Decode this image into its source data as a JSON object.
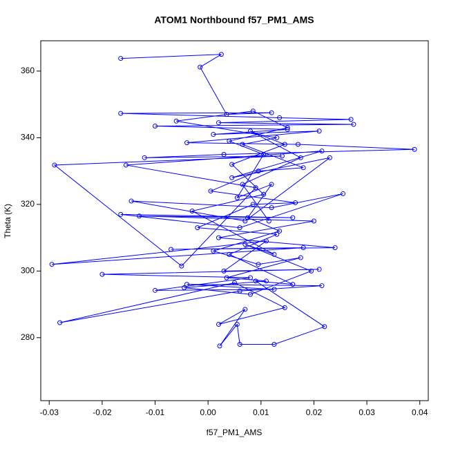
{
  "chart_data": {
    "type": "scatter",
    "title": "ATOM1 Northbound f57_PM1_AMS",
    "x_label": "f57_PM1_AMS",
    "y_label": "Theta (K)",
    "color": "#0000ff",
    "connect": true,
    "xlim": [
      -0.0316,
      0.0416
    ],
    "ylim": [
      261.1,
      369.1
    ],
    "xticks": [
      -0.03,
      -0.02,
      -0.01,
      {
        "value": 0,
        "label": "0.00"
      },
      0.01,
      0.02,
      0.03,
      0.04
    ],
    "yticks": [
      280,
      300,
      320,
      340,
      360
    ],
    "x": [
      -0.0165,
      0.0025,
      -0.0015,
      0.0035,
      0.012,
      -0.0165,
      0.0135,
      0.027,
      0.002,
      0.0275,
      -0.01,
      0.015,
      0.001,
      0.021,
      -0.004,
      0.017,
      0.039,
      0.003,
      -0.012,
      0.014,
      -0.029,
      -0.005,
      0.009,
      -0.0155,
      0.0215,
      0.0045,
      0.023,
      0.007,
      -0.0145,
      0.012,
      0.0255,
      0.006,
      -0.0165,
      0.016,
      -0.013,
      0.02,
      0.002,
      0.024,
      -0.007,
      0.018,
      -0.0295,
      0.011,
      0.003,
      0.021,
      -0.02,
      0.008,
      -0.01,
      0.0125,
      -0.004,
      0.0215,
      0.006,
      -0.028,
      0.005,
      0.0145,
      0.002,
      0.007,
      0.0022,
      0.0055,
      0.006,
      0.0125,
      0.022,
      0.009,
      0.016,
      0.004,
      0.013,
      -0.002,
      0.0085,
      0.0165,
      0.0005,
      0.0095,
      0.018,
      0.0065,
      0.013,
      -0.006,
      0.0085,
      0.015,
      0.004,
      0.0105,
      0.0055,
      0.012,
      0.0075,
      0.0135,
      0.001,
      0.0095,
      0.0175,
      0.0035,
      0.011,
      -0.0045,
      0.008,
      0.0195,
      0.007,
      0.0125,
      -0.003,
      0.0105,
      0.0045,
      0.0145,
      0.008,
      0.0175,
      0.0065,
      0.0115
    ],
    "values": [
      363.8,
      365,
      361.2,
      347,
      347.5,
      347.3,
      346,
      345.5,
      344.5,
      344,
      343.5,
      342.5,
      341,
      342,
      338.5,
      338,
      336.5,
      335,
      334,
      334.5,
      331.8,
      301.5,
      325,
      331.8,
      336,
      328,
      334,
      315,
      321,
      319,
      323.2,
      313,
      317,
      316,
      316.5,
      315,
      310,
      307,
      306.5,
      307,
      302,
      309,
      300,
      300.5,
      299,
      298,
      294.2,
      294.5,
      296,
      295.6,
      294,
      284.5,
      296.5,
      289,
      284,
      288.5,
      277.5,
      284,
      278,
      278,
      283.3,
      297,
      296,
      305,
      311,
      313,
      320,
      320.5,
      324,
      330,
      331,
      338,
      340,
      345,
      348,
      343,
      339,
      335,
      322,
      326,
      316,
      312,
      306,
      302,
      304,
      298,
      297,
      295,
      293,
      300,
      308,
      305,
      318,
      323,
      332,
      338,
      342,
      334,
      326,
      315
    ]
  }
}
